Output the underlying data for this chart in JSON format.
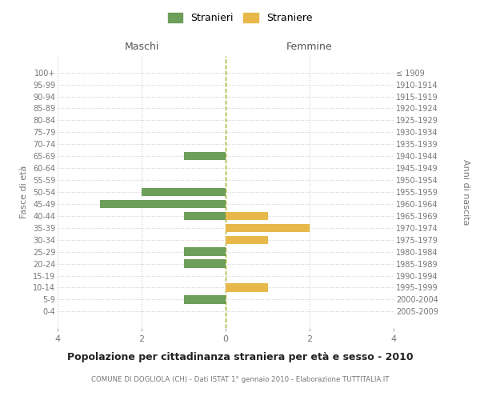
{
  "age_groups": [
    "100+",
    "95-99",
    "90-94",
    "85-89",
    "80-84",
    "75-79",
    "70-74",
    "65-69",
    "60-64",
    "55-59",
    "50-54",
    "45-49",
    "40-44",
    "35-39",
    "30-34",
    "25-29",
    "20-24",
    "15-19",
    "10-14",
    "5-9",
    "0-4"
  ],
  "birth_years": [
    "≤ 1909",
    "1910-1914",
    "1915-1919",
    "1920-1924",
    "1925-1929",
    "1930-1934",
    "1935-1939",
    "1940-1944",
    "1945-1949",
    "1950-1954",
    "1955-1959",
    "1960-1964",
    "1965-1969",
    "1970-1974",
    "1975-1979",
    "1980-1984",
    "1985-1989",
    "1990-1994",
    "1995-1999",
    "2000-2004",
    "2005-2009"
  ],
  "maschi": [
    0,
    0,
    0,
    0,
    0,
    0,
    0,
    1,
    0,
    0,
    2,
    3,
    1,
    0,
    0,
    1,
    1,
    0,
    0,
    1,
    0
  ],
  "femmine": [
    0,
    0,
    0,
    0,
    0,
    0,
    0,
    0,
    0,
    0,
    0,
    0,
    1,
    2,
    1,
    0,
    0,
    0,
    1,
    0,
    0
  ],
  "male_color": "#6d9e5a",
  "female_color": "#e8b84b",
  "center_line_color": "#9aab20",
  "grid_color": "#cccccc",
  "title": "Popolazione per cittadinanza straniera per età e sesso - 2010",
  "subtitle": "COMUNE DI DOGLIOLA (CH) - Dati ISTAT 1° gennaio 2010 - Elaborazione TUTTITALIA.IT",
  "xlabel_left": "Maschi",
  "xlabel_right": "Femmine",
  "ylabel_left": "Fasce di età",
  "ylabel_right": "Anni di nascita",
  "legend_male": "Stranieri",
  "legend_female": "Straniere",
  "xlim": 4,
  "background_color": "#ffffff",
  "bar_height": 0.7
}
